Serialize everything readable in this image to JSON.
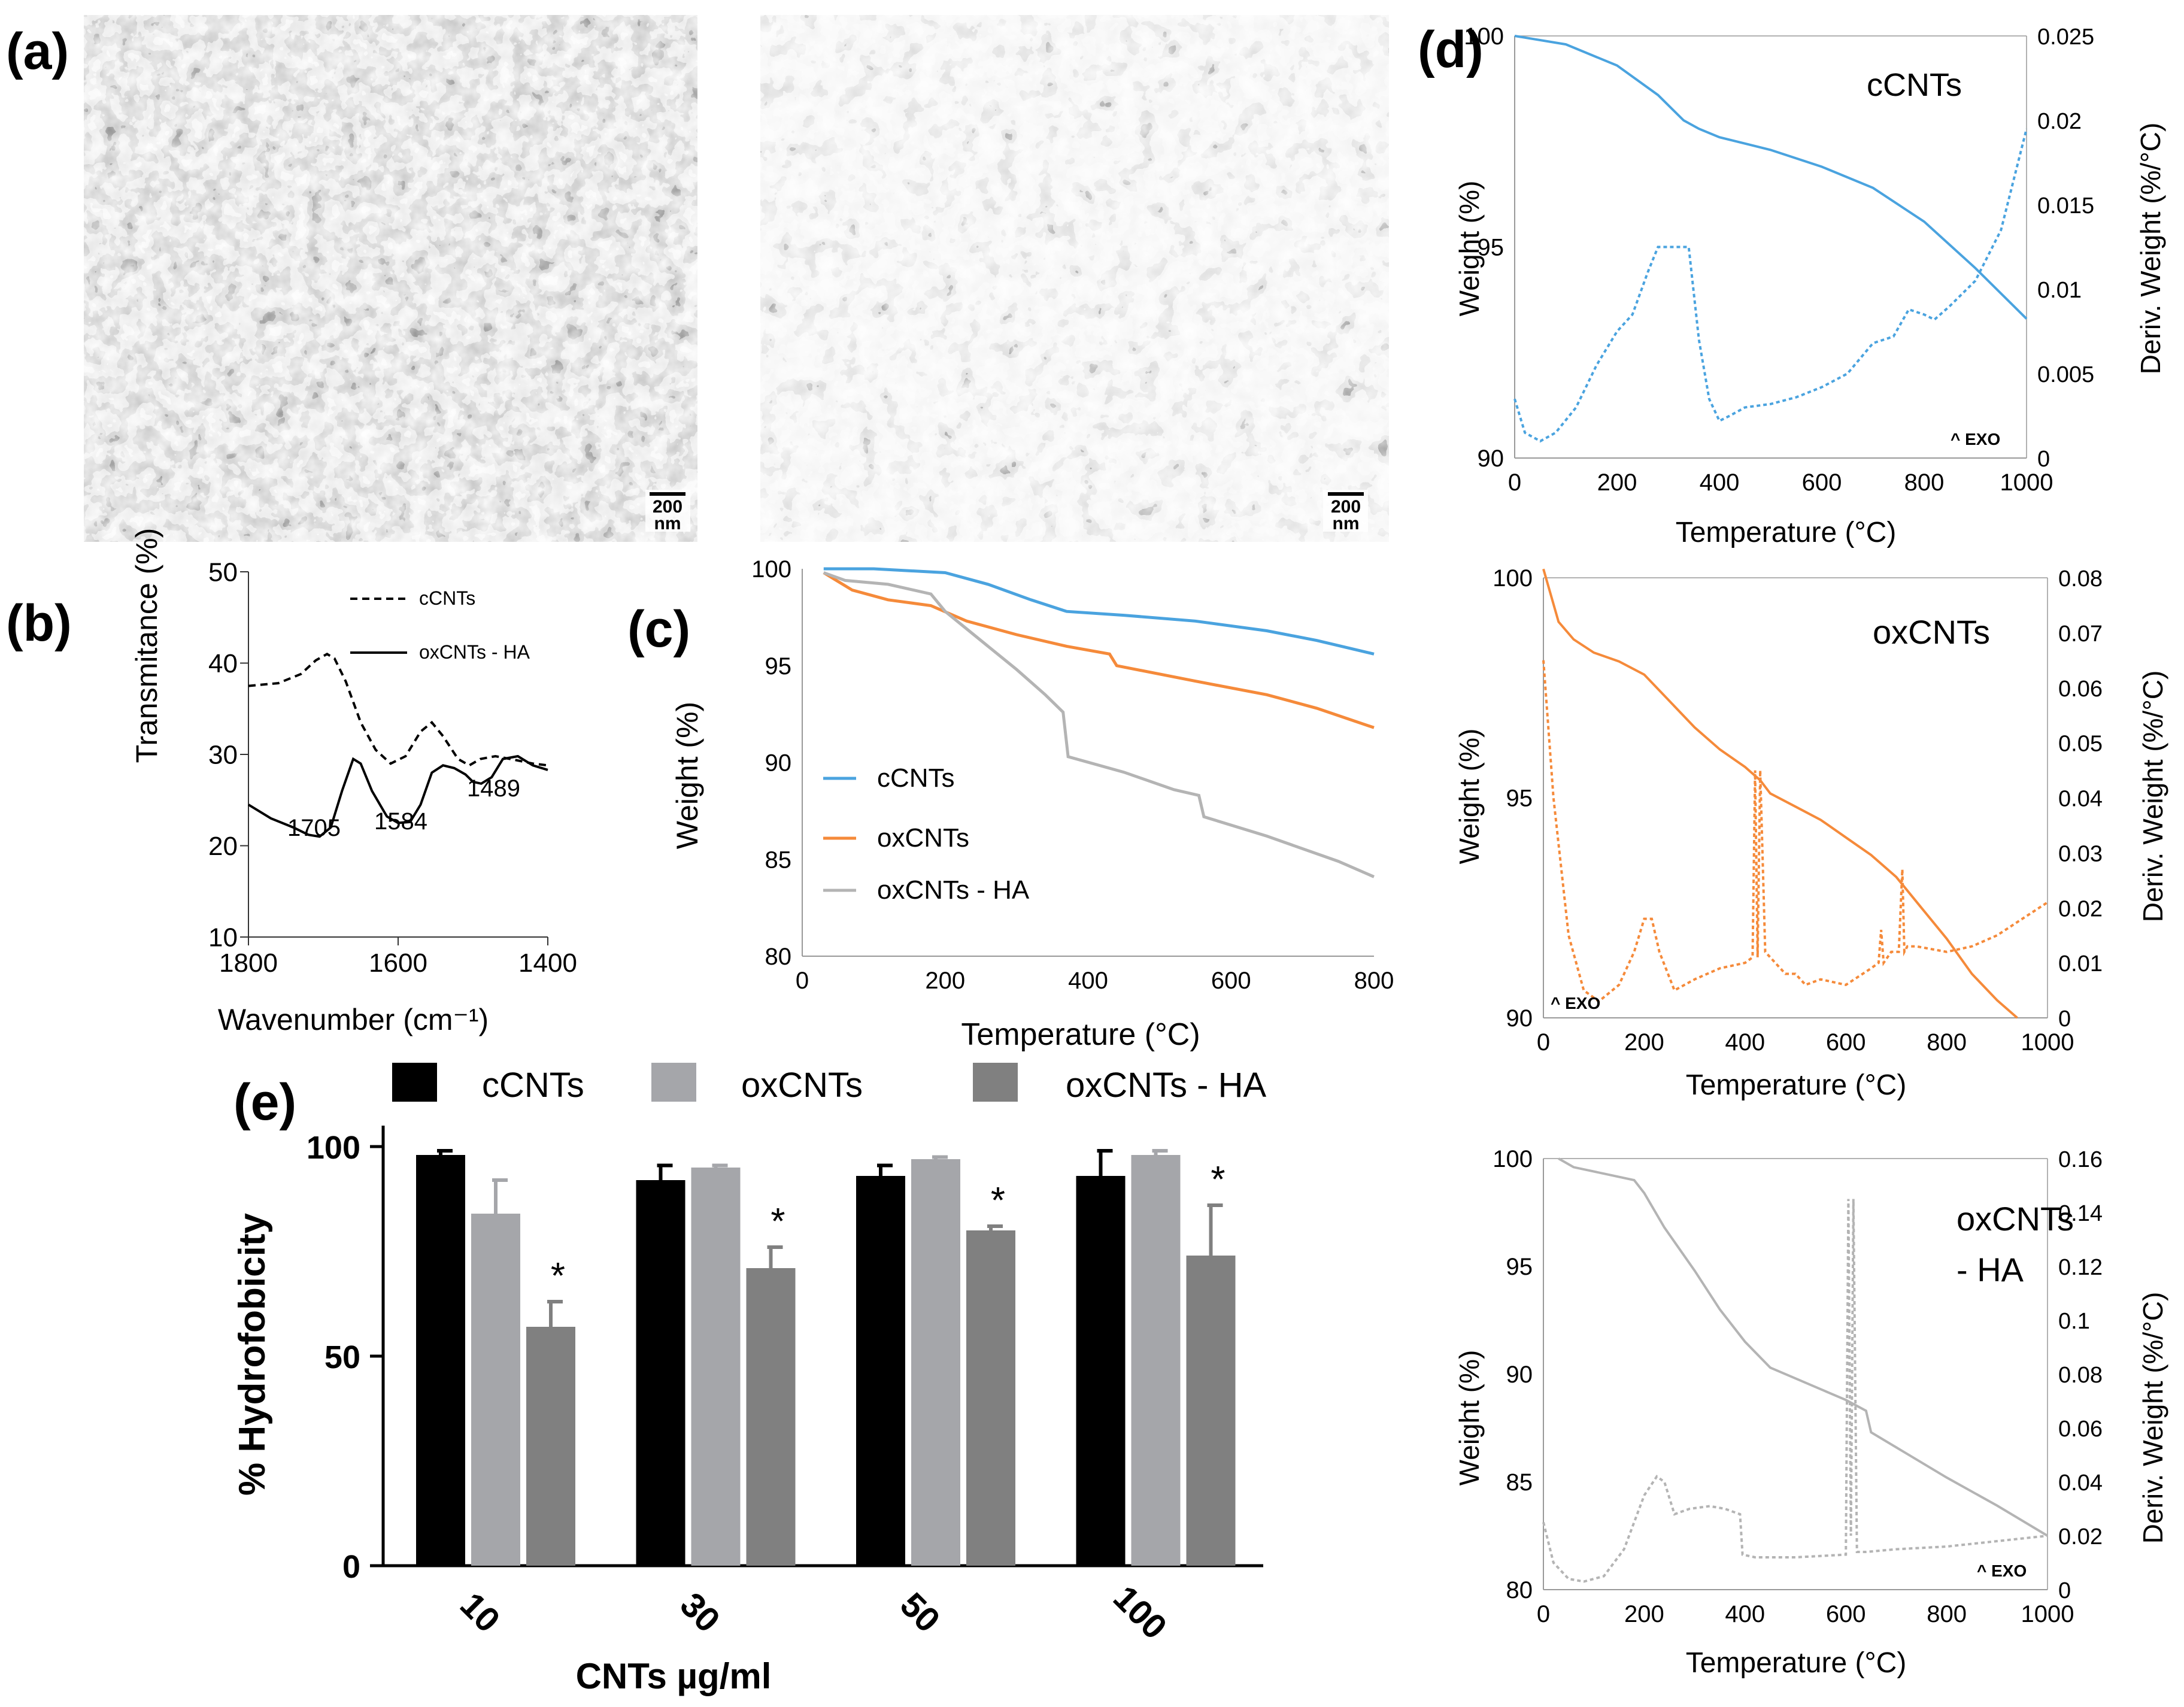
{
  "panel_labels": {
    "a": "(a)",
    "b": "(b)",
    "c": "(c)",
    "d": "(d)",
    "e": "(e)"
  },
  "micrographs": [
    {
      "scale_value": "200",
      "scale_unit": "nm"
    },
    {
      "scale_value": "200",
      "scale_unit": "nm"
    }
  ],
  "colors": {
    "cCNTs": "#4aa3df",
    "oxCNTs": "#f58a3a",
    "oxCNTs_HA": "#b4b4b4",
    "bar_cCNTs": "#000000",
    "bar_oxCNTs": "#a5a6aa",
    "bar_oxCNTs_HA": "#808080"
  },
  "chart_data": [
    {
      "id": "b",
      "type": "line",
      "xlabel": "Wavenumber (cm⁻¹)",
      "ylabel": "Transmitance (%)",
      "xlim": [
        1800,
        1400
      ],
      "ylim": [
        10,
        50
      ],
      "xticks": [
        1800,
        1600,
        1400
      ],
      "yticks": [
        10,
        20,
        30,
        40,
        50
      ],
      "series": [
        {
          "name": "cCNTs",
          "style": "dashed",
          "x": [
            1800,
            1760,
            1730,
            1710,
            1695,
            1685,
            1670,
            1650,
            1630,
            1610,
            1590,
            1570,
            1555,
            1540,
            1520,
            1505,
            1490,
            1470,
            1450,
            1420,
            1400
          ],
          "y": [
            37.5,
            37.8,
            38.8,
            40.3,
            41.0,
            40.5,
            38.0,
            33.5,
            30.5,
            29.0,
            29.8,
            32.5,
            33.5,
            32.0,
            29.5,
            28.8,
            29.5,
            29.8,
            29.5,
            29.0,
            28.8
          ]
        },
        {
          "name": "oxCNTs - HA",
          "style": "solid",
          "x": [
            1800,
            1770,
            1740,
            1720,
            1705,
            1690,
            1675,
            1660,
            1650,
            1635,
            1615,
            1600,
            1584,
            1570,
            1555,
            1540,
            1525,
            1510,
            1500,
            1489,
            1475,
            1460,
            1440,
            1420,
            1400
          ],
          "y": [
            24.5,
            23.0,
            22.0,
            21.2,
            21.0,
            22.0,
            26.0,
            29.5,
            29.0,
            26.0,
            23.2,
            22.5,
            22.6,
            24.5,
            28.0,
            28.8,
            28.5,
            27.8,
            27.0,
            26.8,
            27.5,
            29.5,
            29.8,
            28.8,
            28.3
          ]
        }
      ],
      "annotations": [
        "1705",
        "1584",
        "1489"
      ],
      "legend": [
        "cCNTs",
        "oxCNTs - HA"
      ]
    },
    {
      "id": "c",
      "type": "line",
      "xlabel": "Temperature (°C)",
      "ylabel": "Weight (%)",
      "xlim": [
        0,
        800
      ],
      "ylim": [
        80,
        100
      ],
      "xticks": [
        0,
        200,
        400,
        600,
        800
      ],
      "yticks": [
        80,
        85,
        90,
        95,
        100
      ],
      "series": [
        {
          "name": "cCNTs",
          "x": [
            30,
            100,
            200,
            260,
            320,
            370,
            450,
            550,
            650,
            720,
            800
          ],
          "y": [
            100,
            100,
            99.8,
            99.2,
            98.4,
            97.8,
            97.6,
            97.3,
            96.8,
            96.3,
            95.6
          ]
        },
        {
          "name": "oxCNTs",
          "x": [
            30,
            70,
            120,
            180,
            230,
            300,
            370,
            430,
            440,
            550,
            650,
            720,
            800
          ],
          "y": [
            99.8,
            98.9,
            98.4,
            98.1,
            97.3,
            96.6,
            96.0,
            95.6,
            95.0,
            94.2,
            93.5,
            92.8,
            91.8
          ]
        },
        {
          "name": "oxCNTs - HA",
          "x": [
            30,
            60,
            120,
            180,
            200,
            240,
            300,
            340,
            365,
            372,
            450,
            520,
            555,
            562,
            650,
            750,
            800
          ],
          "y": [
            99.8,
            99.4,
            99.2,
            98.7,
            97.8,
            96.6,
            94.8,
            93.5,
            92.6,
            90.3,
            89.5,
            88.6,
            88.3,
            87.2,
            86.2,
            84.9,
            84.1
          ]
        }
      ],
      "legend": [
        "cCNTs",
        "oxCNTs",
        "oxCNTs - HA"
      ],
      "legend_position": "bottom-left"
    },
    {
      "id": "d1",
      "type": "line",
      "label": "cCNTs",
      "xlabel": "Temperature (°C)",
      "ylabel": "Weight (%)",
      "ylabel2": "Deriv. Weight (%/°C)",
      "xlim": [
        0,
        1000
      ],
      "ylim": [
        90,
        100
      ],
      "ylim2": [
        0,
        0.025
      ],
      "xticks": [
        0,
        200,
        400,
        600,
        800,
        1000
      ],
      "yticks": [
        90,
        95,
        100
      ],
      "yticks2": [
        0,
        0.005,
        0.01,
        0.015,
        0.02,
        0.025
      ],
      "yticklabels2": [
        "0",
        "0.005",
        "0.01",
        "0.015",
        "0.02",
        "0.025"
      ],
      "weight": {
        "x": [
          0,
          100,
          200,
          280,
          330,
          360,
          400,
          500,
          600,
          700,
          800,
          900,
          1000
        ],
        "y": [
          100,
          99.8,
          99.3,
          98.6,
          98.0,
          97.8,
          97.6,
          97.3,
          96.9,
          96.4,
          95.6,
          94.5,
          93.3
        ]
      },
      "deriv": {
        "x": [
          0,
          20,
          50,
          80,
          120,
          160,
          200,
          230,
          260,
          280,
          300,
          320,
          340,
          360,
          380,
          400,
          420,
          450,
          500,
          550,
          600,
          650,
          700,
          740,
          770,
          800,
          820,
          850,
          900,
          950,
          1000
        ],
        "y": [
          0.0035,
          0.0015,
          0.001,
          0.0015,
          0.003,
          0.0055,
          0.0075,
          0.0085,
          0.011,
          0.0125,
          0.0125,
          0.0125,
          0.0125,
          0.007,
          0.0035,
          0.0022,
          0.0025,
          0.003,
          0.0032,
          0.0036,
          0.0042,
          0.005,
          0.0068,
          0.0072,
          0.0088,
          0.0085,
          0.0082,
          0.009,
          0.0105,
          0.0135,
          0.0195
        ]
      },
      "annotation": "^ EXO"
    },
    {
      "id": "d2",
      "type": "line",
      "label": "oxCNTs",
      "xlabel": "Temperature (°C)",
      "ylabel": "Weight (%)",
      "ylabel2": "Deriv. Weight (%/°C)",
      "xlim": [
        0,
        1000
      ],
      "ylim": [
        90,
        100
      ],
      "ylim2": [
        0,
        0.08
      ],
      "xticks": [
        0,
        200,
        400,
        600,
        800,
        1000
      ],
      "yticks": [
        90,
        95,
        100
      ],
      "yticks2": [
        0,
        0.01,
        0.02,
        0.03,
        0.04,
        0.05,
        0.06,
        0.07,
        0.08
      ],
      "yticklabels2": [
        "0",
        "0.01",
        "0.02",
        "0.03",
        "0.04",
        "0.05",
        "0.06",
        "0.07",
        "0.08"
      ],
      "weight": {
        "x": [
          0,
          30,
          60,
          100,
          150,
          200,
          250,
          300,
          350,
          400,
          430,
          450,
          500,
          550,
          600,
          650,
          700,
          750,
          800,
          850,
          900,
          940
        ],
        "y": [
          100.2,
          99.0,
          98.6,
          98.3,
          98.1,
          97.8,
          97.2,
          96.6,
          96.1,
          95.7,
          95.4,
          95.1,
          94.8,
          94.5,
          94.1,
          93.7,
          93.2,
          92.5,
          91.8,
          91.0,
          90.4,
          90.0
        ]
      },
      "deriv": {
        "x": [
          0,
          20,
          50,
          80,
          110,
          150,
          180,
          200,
          215,
          230,
          260,
          300,
          350,
          400,
          415,
          420,
          425,
          430,
          440,
          480,
          500,
          520,
          550,
          600,
          650,
          665,
          670,
          675,
          690,
          705,
          712,
          716,
          722,
          740,
          800,
          850,
          900,
          950,
          1000
        ],
        "y": [
          0.065,
          0.04,
          0.015,
          0.005,
          0.003,
          0.006,
          0.012,
          0.018,
          0.018,
          0.012,
          0.005,
          0.007,
          0.009,
          0.01,
          0.011,
          0.045,
          0.011,
          0.045,
          0.012,
          0.008,
          0.008,
          0.006,
          0.007,
          0.006,
          0.009,
          0.01,
          0.016,
          0.01,
          0.012,
          0.012,
          0.027,
          0.012,
          0.013,
          0.013,
          0.012,
          0.013,
          0.015,
          0.018,
          0.021
        ]
      },
      "annotation": "^ EXO"
    },
    {
      "id": "d3",
      "type": "line",
      "label_line1": "oxCNTs",
      "label_line2": "- HA",
      "xlabel": "Temperature (°C)",
      "ylabel": "Weight (%)",
      "ylabel2": "Deriv. Weight (%/°C)",
      "xlim": [
        0,
        1000
      ],
      "ylim": [
        80,
        100
      ],
      "ylim2": [
        0,
        0.16
      ],
      "xticks": [
        0,
        200,
        400,
        600,
        800,
        1000
      ],
      "yticks": [
        80,
        85,
        90,
        95,
        100
      ],
      "yticks2": [
        0,
        0.02,
        0.04,
        0.06,
        0.08,
        0.1,
        0.12,
        0.14,
        0.16
      ],
      "yticklabels2": [
        "0",
        "0.02",
        "0.04",
        "0.06",
        "0.08",
        "0.1",
        "0.12",
        "0.14",
        "0.16"
      ],
      "weight": {
        "x": [
          30,
          60,
          120,
          180,
          200,
          240,
          300,
          350,
          400,
          450,
          500,
          550,
          600,
          640,
          650,
          700,
          800,
          900,
          1000
        ],
        "y": [
          100,
          99.6,
          99.3,
          99.0,
          98.4,
          96.8,
          94.8,
          93.0,
          91.5,
          90.3,
          89.8,
          89.3,
          88.8,
          88.3,
          87.3,
          86.6,
          85.2,
          83.9,
          82.5
        ]
      },
      "deriv": {
        "x": [
          0,
          20,
          50,
          80,
          120,
          160,
          200,
          225,
          240,
          260,
          290,
          330,
          360,
          390,
          395,
          420,
          500,
          600,
          605,
          610,
          615,
          622,
          640,
          700,
          800,
          900,
          1000
        ],
        "y": [
          0.025,
          0.01,
          0.004,
          0.003,
          0.005,
          0.015,
          0.035,
          0.042,
          0.04,
          0.028,
          0.03,
          0.031,
          0.03,
          0.028,
          0.013,
          0.012,
          0.012,
          0.013,
          0.145,
          0.02,
          0.145,
          0.014,
          0.014,
          0.015,
          0.016,
          0.018,
          0.02
        ]
      },
      "annotation": "^ EXO"
    },
    {
      "id": "e",
      "type": "bar",
      "xlabel": "CNTs µg/ml",
      "ylabel": "% Hydrofobicity",
      "categories": [
        "10",
        "30",
        "50",
        "100"
      ],
      "ylim": [
        0,
        105
      ],
      "yticks": [
        0,
        50,
        100
      ],
      "series": [
        {
          "name": "cCNTs",
          "values": [
            98,
            92,
            93,
            93
          ],
          "errors": [
            1,
            3.5,
            2.5,
            6
          ]
        },
        {
          "name": "oxCNTs",
          "values": [
            84,
            95,
            97,
            98
          ],
          "errors": [
            8,
            0.5,
            0.5,
            1
          ]
        },
        {
          "name": "oxCNTs - HA",
          "values": [
            57,
            71,
            80,
            74
          ],
          "errors": [
            6,
            5,
            1,
            12
          ]
        }
      ],
      "significance": [
        "*",
        "*",
        "*",
        "*"
      ],
      "legend": [
        "cCNTs",
        "oxCNTs",
        "oxCNTs - HA"
      ],
      "legend_position": "top"
    }
  ]
}
